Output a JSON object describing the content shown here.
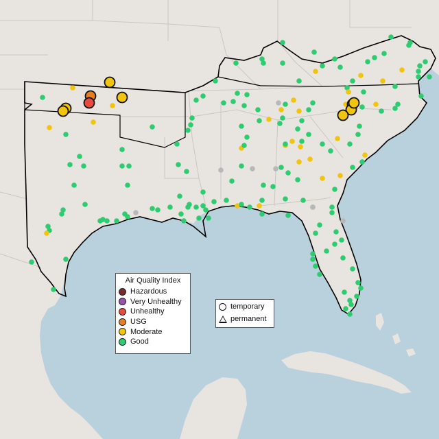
{
  "legend": {
    "title": "Air Quality Index",
    "categories": [
      {
        "label": "Hazardous",
        "color": "#7a2a28"
      },
      {
        "label": "Very Unhealthy",
        "color": "#9b4fb0"
      },
      {
        "label": "Unhealthy",
        "color": "#e84a3c"
      },
      {
        "label": "USG",
        "color": "#e67e22"
      },
      {
        "label": "Moderate",
        "color": "#f1c40f"
      },
      {
        "label": "Good",
        "color": "#2ecc71"
      }
    ],
    "shapes": [
      {
        "label": "temporary",
        "icon": "circle-icon"
      },
      {
        "label": "permanent",
        "icon": "triangle-icon"
      }
    ]
  },
  "colors": {
    "land": "#e8e4e0",
    "water": "#b9d0dd",
    "state_border": "#c9c4c0",
    "highlight_border": "#000000",
    "no_data": "#b8b8b8"
  }
}
